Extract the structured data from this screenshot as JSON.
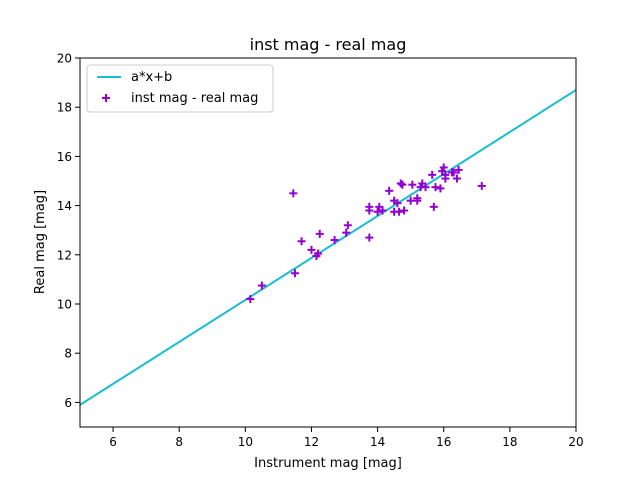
{
  "chart_data": {
    "type": "scatter",
    "title": "inst mag - real mag",
    "xlabel": "Instrument mag [mag]",
    "ylabel": "Real mag [mag]",
    "xlim": [
      5,
      20
    ],
    "ylim": [
      5,
      20
    ],
    "xticks": [
      "6",
      "8",
      "10",
      "12",
      "14",
      "16",
      "18",
      "20"
    ],
    "yticks": [
      "6",
      "8",
      "10",
      "12",
      "14",
      "16",
      "18",
      "20"
    ],
    "grid": false,
    "legend_position": "top-left",
    "fit_line": {
      "name": "a*x+b",
      "color": "#17becf",
      "x": [
        5,
        20
      ],
      "y": [
        5.9,
        18.7
      ]
    },
    "series": [
      {
        "name": "inst mag - real mag",
        "color": "#9400d3",
        "marker": "plus",
        "points": [
          [
            10.15,
            10.2
          ],
          [
            10.5,
            10.75
          ],
          [
            11.45,
            14.5
          ],
          [
            11.5,
            11.25
          ],
          [
            11.7,
            12.55
          ],
          [
            12.0,
            12.2
          ],
          [
            12.15,
            11.95
          ],
          [
            12.2,
            12.05
          ],
          [
            12.25,
            12.85
          ],
          [
            12.7,
            12.6
          ],
          [
            13.05,
            12.9
          ],
          [
            13.1,
            13.2
          ],
          [
            13.75,
            12.7
          ],
          [
            13.75,
            13.8
          ],
          [
            13.75,
            13.95
          ],
          [
            14.0,
            13.75
          ],
          [
            14.05,
            13.95
          ],
          [
            14.15,
            13.8
          ],
          [
            14.35,
            14.6
          ],
          [
            14.5,
            14.2
          ],
          [
            14.5,
            13.75
          ],
          [
            14.6,
            14.1
          ],
          [
            14.65,
            13.75
          ],
          [
            14.7,
            14.9
          ],
          [
            14.75,
            14.85
          ],
          [
            14.8,
            13.8
          ],
          [
            15.0,
            14.2
          ],
          [
            15.05,
            14.85
          ],
          [
            15.2,
            14.3
          ],
          [
            15.2,
            14.2
          ],
          [
            15.3,
            14.75
          ],
          [
            15.35,
            14.9
          ],
          [
            15.45,
            14.75
          ],
          [
            15.65,
            15.25
          ],
          [
            15.7,
            13.95
          ],
          [
            15.75,
            14.75
          ],
          [
            15.9,
            14.7
          ],
          [
            15.95,
            15.4
          ],
          [
            16.0,
            15.55
          ],
          [
            16.05,
            15.1
          ],
          [
            16.05,
            15.25
          ],
          [
            16.25,
            15.35
          ],
          [
            16.3,
            15.35
          ],
          [
            16.4,
            15.1
          ],
          [
            16.45,
            15.45
          ],
          [
            17.15,
            14.8
          ]
        ]
      }
    ]
  }
}
